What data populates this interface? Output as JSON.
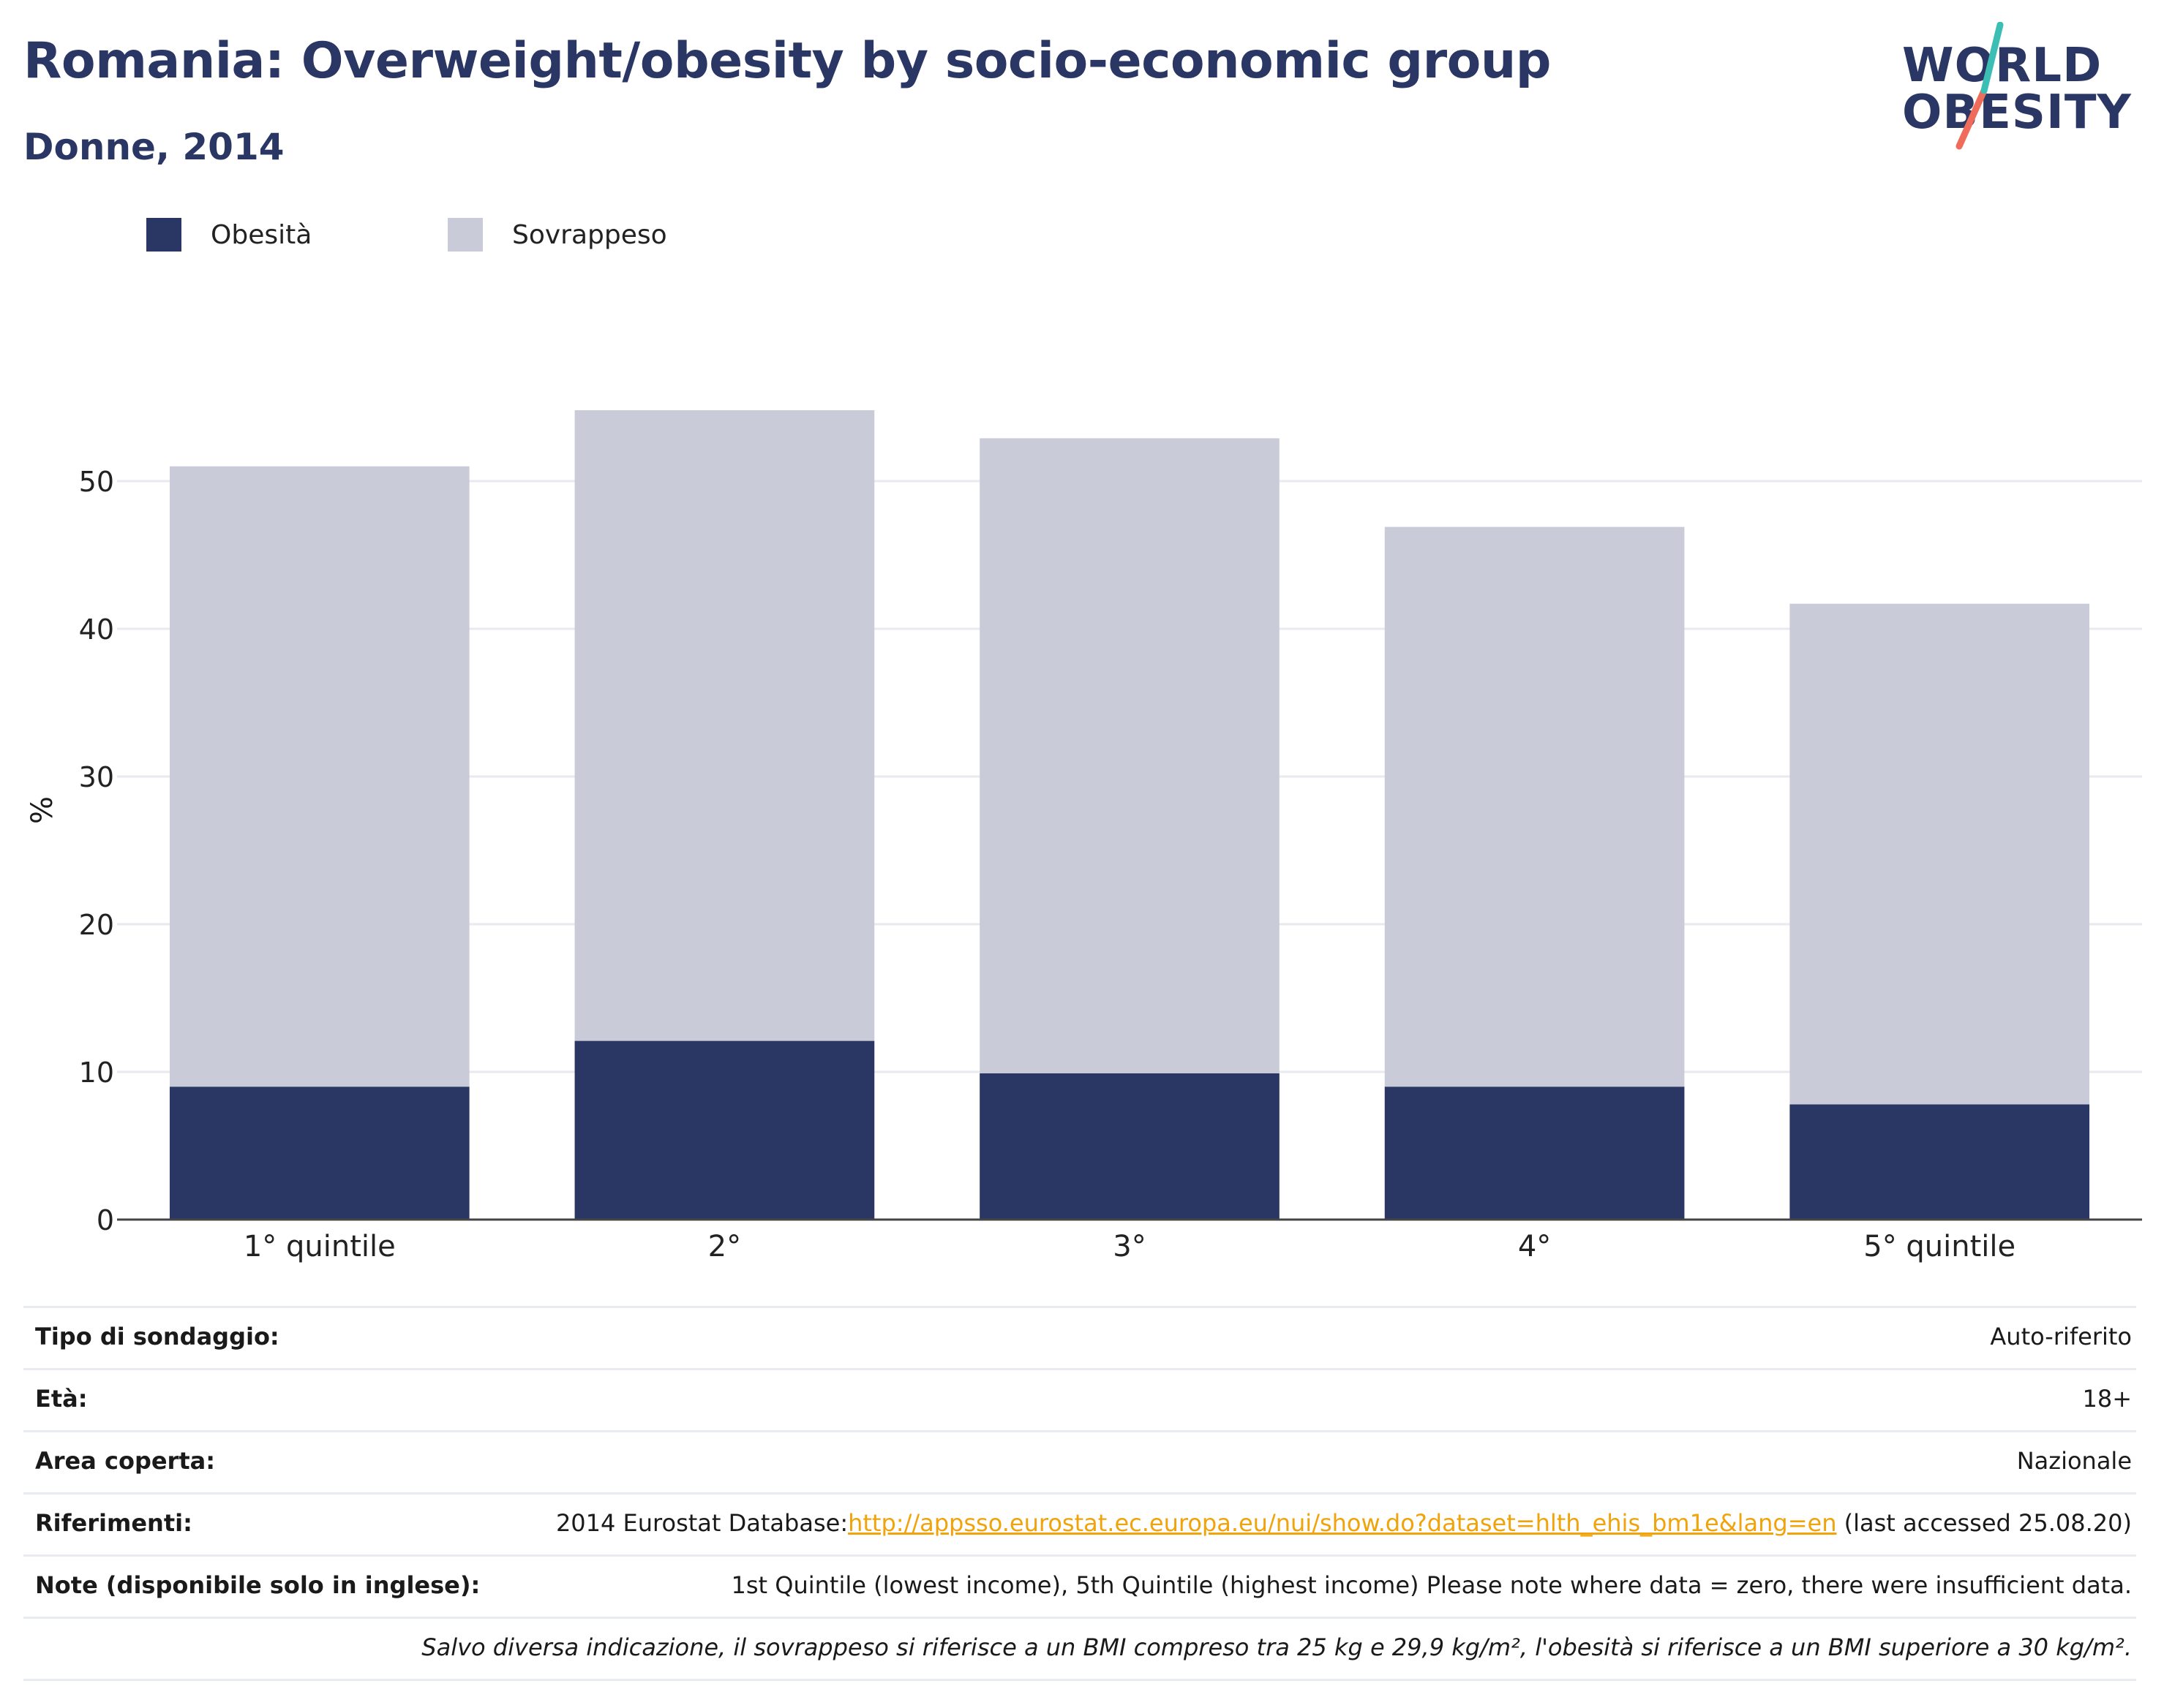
{
  "header": {
    "title": "Romania: Overweight/obesity by socio-economic group",
    "subtitle": "Donne, 2014"
  },
  "logo": {
    "line1": "WORLD",
    "line2": "OBESITY",
    "colors": {
      "text": "#2a3664",
      "slash_top": "#3bbfb5",
      "slash_bottom": "#ef6b5a"
    }
  },
  "legend": [
    {
      "label": "Obesità",
      "color": "#2a3664"
    },
    {
      "label": "Sovrappeso",
      "color": "#c9ccd8"
    }
  ],
  "chart_data": {
    "type": "bar",
    "stacked": true,
    "categories": [
      "1° quintile",
      "2°",
      "3°",
      "4°",
      "5° quintile"
    ],
    "series": [
      {
        "name": "Obesità",
        "values": [
          9.0,
          12.1,
          9.9,
          9.0,
          7.8
        ],
        "color": "#2a3664"
      },
      {
        "name": "Sovrappeso",
        "values": [
          42.0,
          42.7,
          43.0,
          37.9,
          33.9
        ],
        "color": "#c9ccd8"
      }
    ],
    "totals": [
      51.0,
      54.8,
      52.9,
      46.9,
      41.7
    ],
    "ylabel": "%",
    "ylim": [
      0,
      60
    ],
    "yticks": [
      0,
      10,
      20,
      30,
      40,
      50
    ],
    "grid": true,
    "legend_position": "top-left"
  },
  "info": [
    {
      "label": "Tipo di sondaggio:",
      "value": "Auto-riferito"
    },
    {
      "label": "Età:",
      "value": "18+"
    },
    {
      "label": "Area coperta:",
      "value": "Nazionale"
    },
    {
      "label": "Riferimenti:",
      "value_prefix": "2014 Eurostat Database:",
      "link": "http://appsso.eurostat.ec.europa.eu/nui/show.do?dataset=hlth_ehis_bm1e&lang=en",
      "value_suffix": " (last accessed 25.08.20)"
    },
    {
      "label": "Note (disponibile solo in inglese):",
      "value": "1st Quintile (lowest income), 5th Quintile (highest income) Please note where data = zero, there were insufficient data."
    },
    {
      "label": "",
      "value": "Salvo diversa indicazione, il sovrappeso si riferisce a un BMI compreso tra 25 kg e 29,9 kg/m², l'obesità si riferisce a un BMI superiore a 30 kg/m²."
    }
  ]
}
